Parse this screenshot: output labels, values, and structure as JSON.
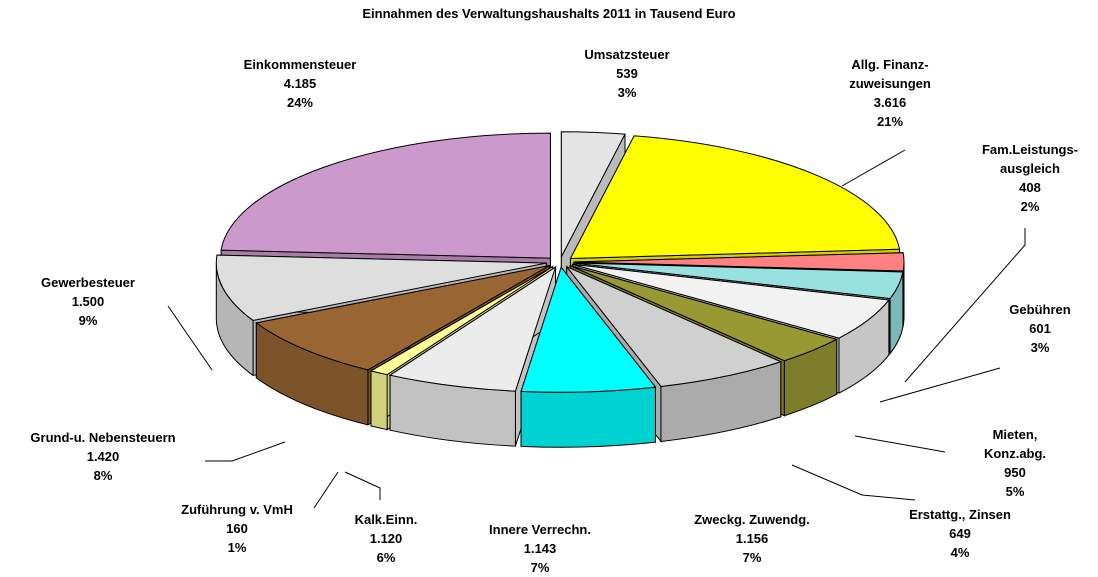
{
  "chart_data": {
    "type": "pie3d",
    "title": "Einnahmen des Verwaltungshaushalts 2011 in Tausend Euro",
    "categories": [
      "Einkommensteuer",
      "Umsatzsteuer",
      "Allg. Finanz-\nzuweisungen",
      "Fam.Leistungs-\nausgleich",
      "Gebühren",
      "Mieten, Konz.abg.",
      "Erstattg., Zinsen",
      "Zweckg. Zuwendg.",
      "Innere Verrechn.",
      "Kalk.Einn.",
      "Zuführung v. VmH",
      "Grund-u. Nebensteuern",
      "Gewerbesteuer"
    ],
    "values": [
      4185,
      539,
      3616,
      408,
      601,
      950,
      649,
      1156,
      1143,
      1120,
      160,
      1420,
      1500
    ],
    "value_labels": [
      "4.185",
      "539",
      "3.616",
      "408",
      "601",
      "950",
      "649",
      "1.156",
      "1.143",
      "1.120",
      "160",
      "1.420",
      "1.500"
    ],
    "percent_labels": [
      "24%",
      "3%",
      "21%",
      "2%",
      "3%",
      "5%",
      "4%",
      "7%",
      "7%",
      "6%",
      "1%",
      "8%",
      "9%"
    ],
    "colors": [
      "#cc99cc",
      "#e4e4e4",
      "#ffff00",
      "#ff8080",
      "#99e0e0",
      "#f2f2f2",
      "#999933",
      "#d0d0d0",
      "#00ffff",
      "#ececec",
      "#ffff99",
      "#996633",
      "#dedede"
    ]
  }
}
